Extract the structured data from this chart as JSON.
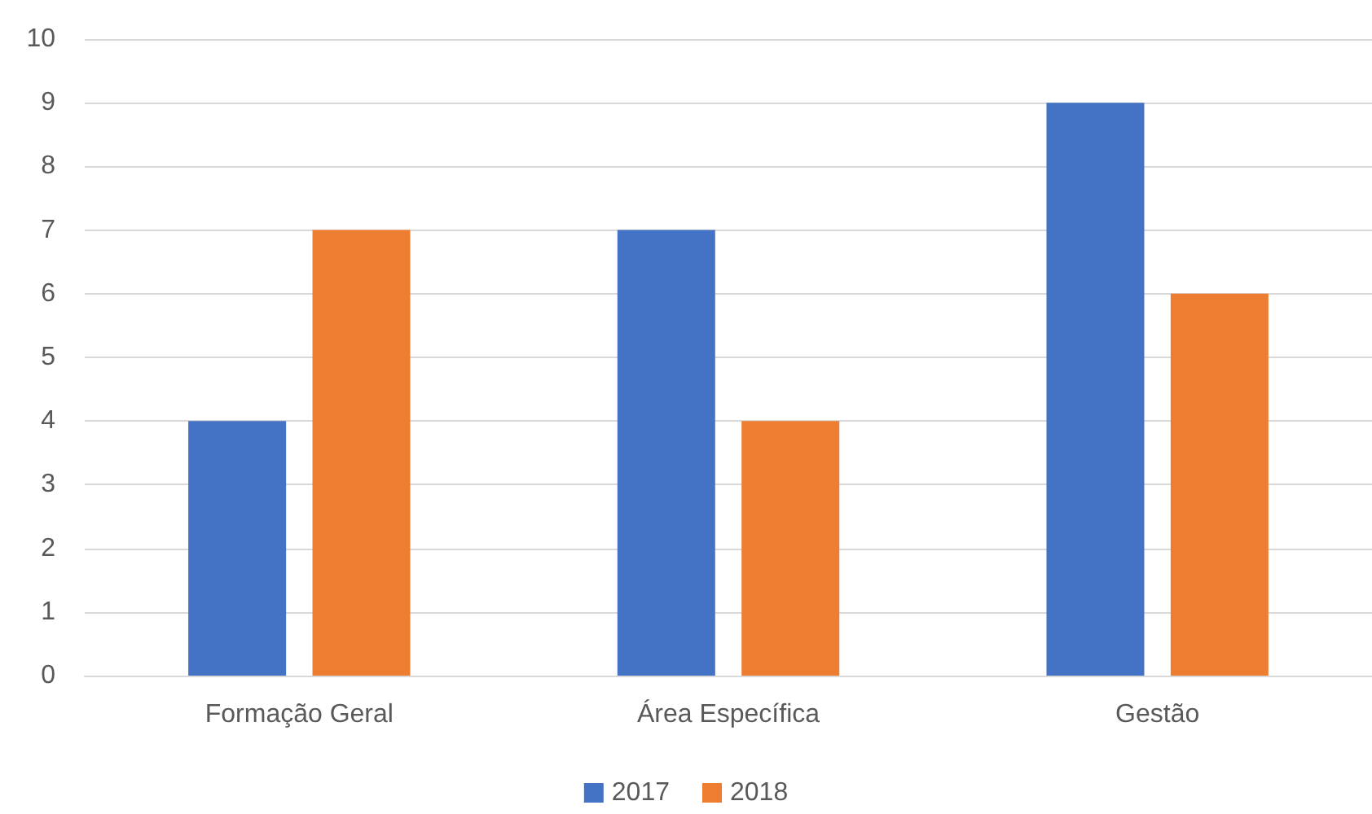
{
  "chart_data": {
    "type": "bar",
    "categories": [
      "Formação Geral",
      "Área Específica",
      "Gestão"
    ],
    "series": [
      {
        "name": "2017",
        "color": "#4472c4",
        "values": [
          4,
          7,
          9
        ]
      },
      {
        "name": "2018",
        "color": "#ed7d31",
        "values": [
          7,
          4,
          6
        ]
      }
    ],
    "ylim": [
      0,
      10
    ],
    "yticks": [
      0,
      1,
      2,
      3,
      4,
      5,
      6,
      7,
      8,
      9,
      10
    ],
    "grid": "y",
    "legend": "bottom"
  }
}
